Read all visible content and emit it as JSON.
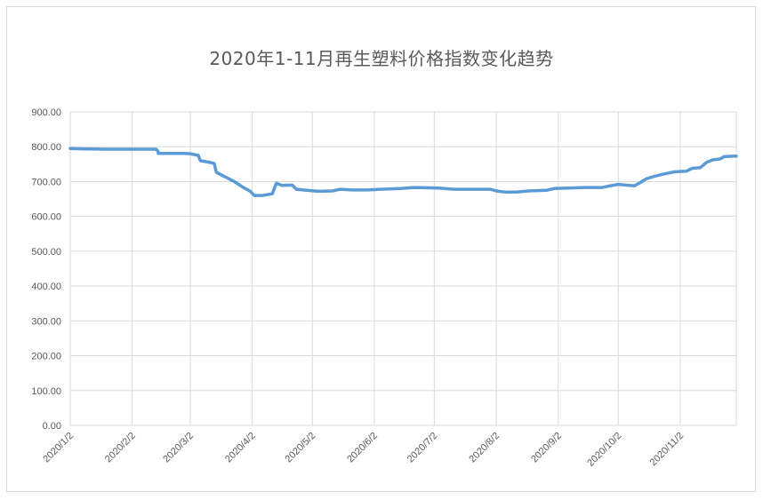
{
  "chart_data": {
    "type": "line",
    "title": "2020年1-11月再生塑料价格指数变化趋势",
    "xlabel": "",
    "ylabel": "",
    "ylim": [
      0,
      900
    ],
    "yticks": [
      "0.00",
      "100.00",
      "200.00",
      "300.00",
      "400.00",
      "500.00",
      "600.00",
      "700.00",
      "800.00",
      "900.00"
    ],
    "xtick_labels": [
      "2020/1/2",
      "2020/2/2",
      "2020/3/2",
      "2020/4/2",
      "2020/5/2",
      "2020/6/2",
      "2020/7/2",
      "2020/8/2",
      "2020/9/2",
      "2020/10/2",
      "2020/11/2"
    ],
    "x_range": [
      "2020-01-02",
      "2020-11-30"
    ],
    "grid": true,
    "line_color": "#5b9bd5",
    "grid_color": "#d9d9d9",
    "series": [
      {
        "points": [
          [
            "2020-01-02",
            795
          ],
          [
            "2020-01-08",
            794
          ],
          [
            "2020-01-20",
            793
          ],
          [
            "2020-02-05",
            793
          ],
          [
            "2020-02-14",
            793
          ],
          [
            "2020-02-15",
            785
          ],
          [
            "2020-02-15",
            781
          ],
          [
            "2020-02-28",
            781
          ],
          [
            "2020-03-02",
            780
          ],
          [
            "2020-03-06",
            775
          ],
          [
            "2020-03-07",
            760
          ],
          [
            "2020-03-12",
            755
          ],
          [
            "2020-03-14",
            752
          ],
          [
            "2020-03-15",
            727
          ],
          [
            "2020-03-18",
            718
          ],
          [
            "2020-03-24",
            700
          ],
          [
            "2020-03-28",
            685
          ],
          [
            "2020-04-01",
            672
          ],
          [
            "2020-04-03",
            660
          ],
          [
            "2020-04-07",
            660
          ],
          [
            "2020-04-12",
            665
          ],
          [
            "2020-04-14",
            695
          ],
          [
            "2020-04-17",
            689
          ],
          [
            "2020-04-22",
            690
          ],
          [
            "2020-04-24",
            678
          ],
          [
            "2020-04-29",
            675
          ],
          [
            "2020-05-05",
            672
          ],
          [
            "2020-05-12",
            673
          ],
          [
            "2020-05-16",
            678
          ],
          [
            "2020-05-22",
            676
          ],
          [
            "2020-05-30",
            676
          ],
          [
            "2020-06-05",
            678
          ],
          [
            "2020-06-15",
            680
          ],
          [
            "2020-06-22",
            683
          ],
          [
            "2020-06-30",
            682
          ],
          [
            "2020-07-05",
            681
          ],
          [
            "2020-07-12",
            678
          ],
          [
            "2020-07-20",
            678
          ],
          [
            "2020-07-30",
            678
          ],
          [
            "2020-08-02",
            673
          ],
          [
            "2020-08-06",
            670
          ],
          [
            "2020-08-12",
            670
          ],
          [
            "2020-08-18",
            673
          ],
          [
            "2020-08-27",
            675
          ],
          [
            "2020-08-31",
            680
          ],
          [
            "2020-09-05",
            681
          ],
          [
            "2020-09-15",
            683
          ],
          [
            "2020-09-24",
            683
          ],
          [
            "2020-09-28",
            688
          ],
          [
            "2020-10-02",
            692
          ],
          [
            "2020-10-10",
            688
          ],
          [
            "2020-10-13",
            697
          ],
          [
            "2020-10-16",
            708
          ],
          [
            "2020-10-20",
            715
          ],
          [
            "2020-10-25",
            722
          ],
          [
            "2020-10-30",
            728
          ],
          [
            "2020-11-05",
            730
          ],
          [
            "2020-11-08",
            738
          ],
          [
            "2020-11-12",
            740
          ],
          [
            "2020-11-15",
            755
          ],
          [
            "2020-11-18",
            762
          ],
          [
            "2020-11-22",
            765
          ],
          [
            "2020-11-24",
            772
          ],
          [
            "2020-11-30",
            773
          ]
        ]
      }
    ]
  }
}
